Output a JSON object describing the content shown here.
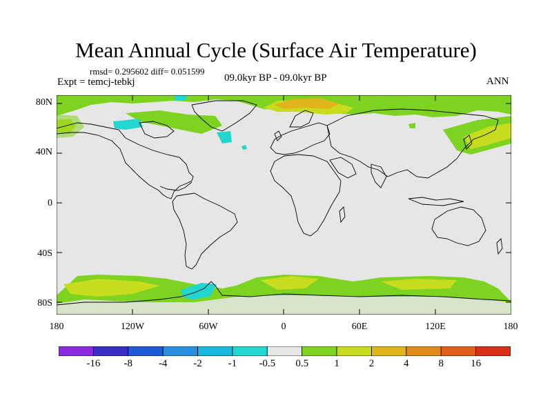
{
  "title": "Mean Annual Cycle (Surface Air Temperature)",
  "stats_line": "rmsd= 0.295602 diff= 0.051599",
  "experiment_line": "Expt = temcj-tebkj",
  "period_line": "09.0kyr BP - 09.0kyr BP",
  "season": "ANN",
  "lat_labels": [
    "80N",
    "40N",
    "0",
    "40S",
    "80S"
  ],
  "lon_labels": [
    "180",
    "120W",
    "60W",
    "0",
    "60E",
    "120E",
    "180"
  ],
  "colorbar": {
    "labels": [
      "-16",
      "-8",
      "-4",
      "-2",
      "-1",
      "-0.5",
      "0.5",
      "1",
      "2",
      "4",
      "8",
      "16"
    ],
    "colors": [
      "#8a2be2",
      "#3a2fc4",
      "#1f5ad8",
      "#2b8fe0",
      "#19b8e0",
      "#22d6d0",
      "#e6e6e6",
      "#7ed321",
      "#c8dc1e",
      "#e0b41a",
      "#e08a1a",
      "#e0601a",
      "#d9301a"
    ]
  },
  "colors": {
    "background": "#e6e6e6",
    "green": "#7ed321",
    "yellow": "#c8dc1e",
    "orange": "#e0b41a",
    "cyan": "#22d6d0"
  }
}
